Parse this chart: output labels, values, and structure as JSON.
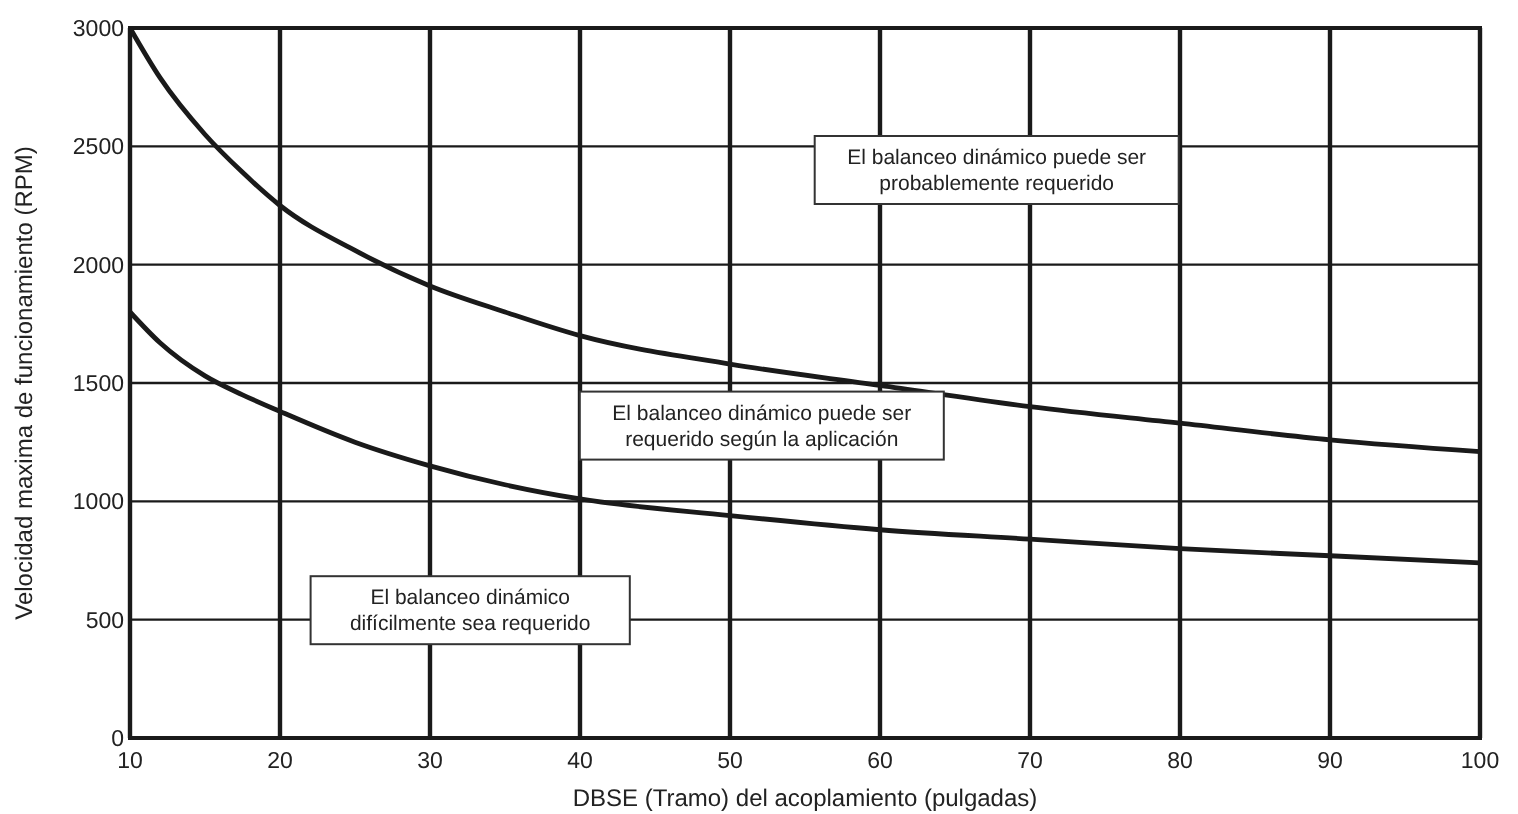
{
  "chart_data": {
    "type": "line",
    "xlabel": "DBSE (Tramo) del acoplamiento (pulgadas)",
    "ylabel": "Velocidad maxima de funcionamiento (RPM)",
    "xlim": [
      10,
      100
    ],
    "xticks": [
      10,
      20,
      30,
      40,
      50,
      60,
      70,
      80,
      90,
      100
    ],
    "ylim": [
      0,
      3000
    ],
    "yticks": [
      0,
      500,
      1000,
      1500,
      2000,
      2500,
      3000
    ],
    "grid": true,
    "marker": "none",
    "line_style": "solid",
    "series": [
      {
        "color": "#1a1a1a",
        "x": [
          10,
          12,
          15,
          17.5,
          20,
          25,
          30,
          35,
          40,
          50,
          60,
          70,
          80,
          90,
          100
        ],
        "values": [
          3000,
          2790,
          2550,
          2390,
          2250,
          2060,
          1910,
          1800,
          1700,
          1580,
          1490,
          1400,
          1330,
          1260,
          1210
        ]
      },
      {
        "color": "#1a1a1a",
        "x": [
          10,
          12,
          15,
          17.5,
          20,
          25,
          30,
          35,
          40,
          50,
          60,
          70,
          80,
          90,
          100
        ],
        "values": [
          1800,
          1670,
          1530,
          1450,
          1380,
          1250,
          1150,
          1070,
          1010,
          940,
          880,
          840,
          800,
          770,
          740
        ]
      }
    ],
    "annotations": [
      "El balanceo dinámico puede ser\nprobablemente requerido",
      "El balanceo dinámico puede ser\nrequerido según la aplicación",
      "El balanceo dinámico\ndifícilmente sea requerido"
    ]
  }
}
